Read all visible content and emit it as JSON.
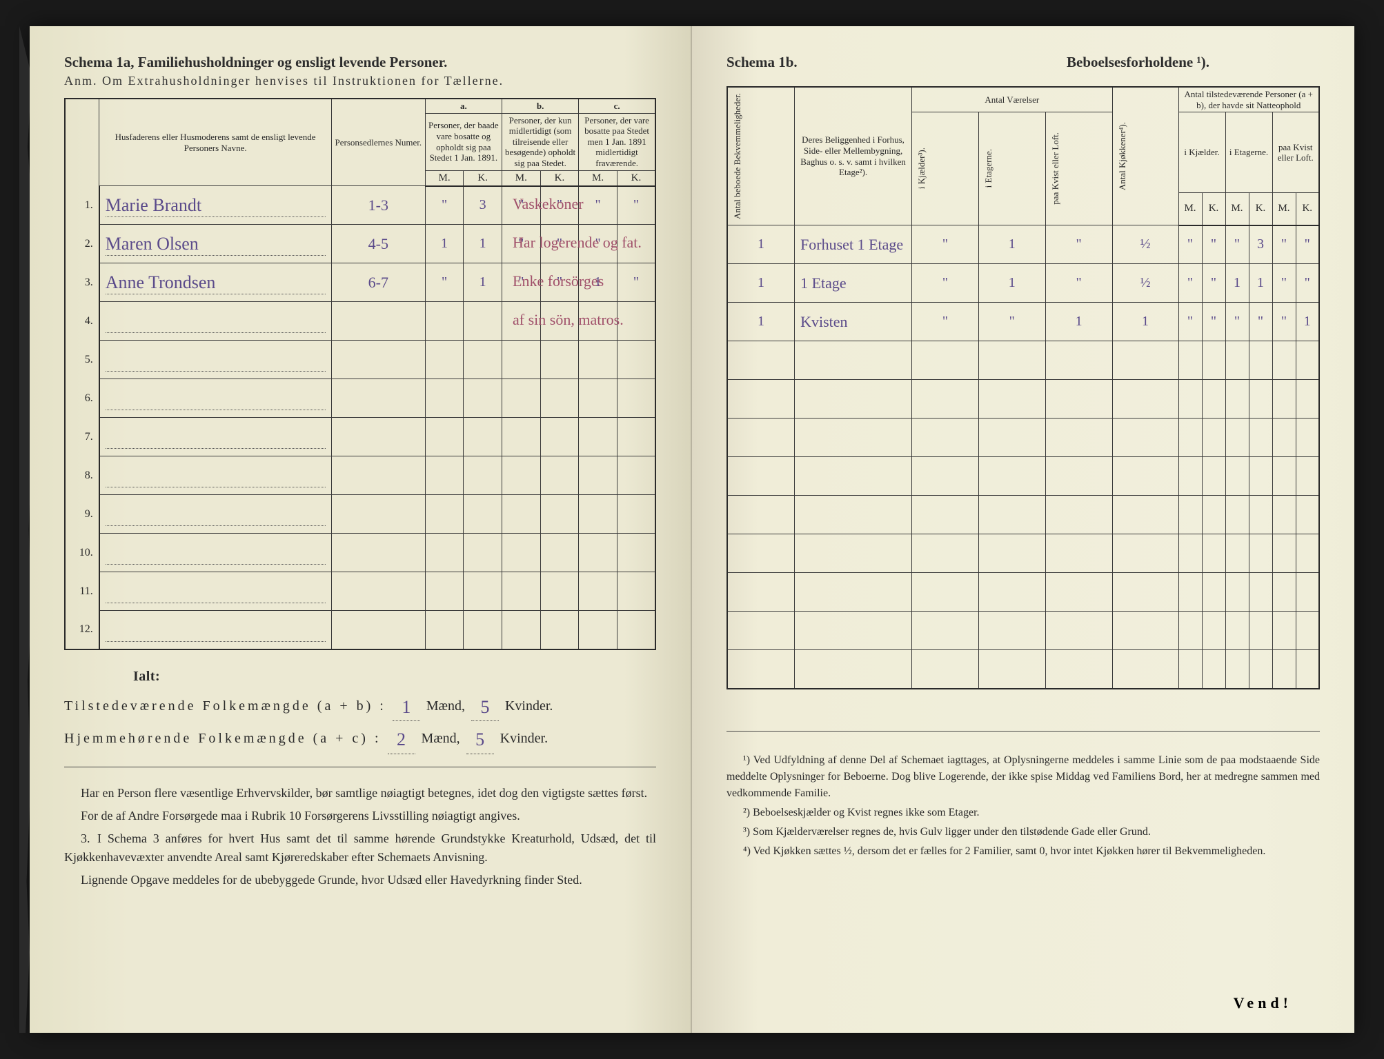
{
  "left": {
    "title": "Schema 1a, Familiehusholdninger og ensligt levende Personer.",
    "anm": "Anm. Om Extrahusholdninger henvises til Instruktionen for Tællerne.",
    "headers": {
      "col1": "Husfaderens eller Husmoderens samt de ensligt levende Personers Navne.",
      "col2": "Personsedlernes Numer.",
      "a": "a.",
      "a_sub": "Personer, der baade vare bosatte og opholdt sig paa Stedet 1 Jan. 1891.",
      "b": "b.",
      "b_sub": "Personer, der kun midlertidigt (som tilreisende eller besøgende) opholdt sig paa Stedet.",
      "c": "c.",
      "c_sub": "Personer, der vare bosatte paa Stedet men 1 Jan. 1891 midlertidigt fraværende.",
      "M": "M.",
      "K": "K."
    },
    "rows": [
      {
        "n": "1.",
        "name": "Marie Brandt",
        "num": "1-3",
        "aM": "\"",
        "aK": "3",
        "bM": "\"",
        "bK": "\"",
        "cM": "\"",
        "cK": "\"",
        "note": "Vaskekoner"
      },
      {
        "n": "2.",
        "name": "Maren Olsen",
        "num": "4-5",
        "aM": "1",
        "aK": "1",
        "bM": "\"",
        "bK": "\"",
        "cM": "\"",
        "cK": "",
        "note": "Har logerende og fat."
      },
      {
        "n": "3.",
        "name": "Anne Trondsen",
        "num": "6-7",
        "aM": "\"",
        "aK": "1",
        "bM": "\"",
        "bK": "\"",
        "cM": "1",
        "cK": "\"",
        "note": "Enke forsörges"
      },
      {
        "n": "4.",
        "name": "",
        "num": "",
        "aM": "",
        "aK": "",
        "bM": "",
        "bK": "",
        "cM": "",
        "cK": "",
        "note": "af sin sön, matros."
      },
      {
        "n": "5.",
        "name": "",
        "num": "",
        "aM": "",
        "aK": "",
        "bM": "",
        "bK": "",
        "cM": "",
        "cK": "",
        "note": ""
      },
      {
        "n": "6.",
        "name": "",
        "num": "",
        "aM": "",
        "aK": "",
        "bM": "",
        "bK": "",
        "cM": "",
        "cK": "",
        "note": ""
      },
      {
        "n": "7.",
        "name": "",
        "num": "",
        "aM": "",
        "aK": "",
        "bM": "",
        "bK": "",
        "cM": "",
        "cK": "",
        "note": ""
      },
      {
        "n": "8.",
        "name": "",
        "num": "",
        "aM": "",
        "aK": "",
        "bM": "",
        "bK": "",
        "cM": "",
        "cK": "",
        "note": ""
      },
      {
        "n": "9.",
        "name": "",
        "num": "",
        "aM": "",
        "aK": "",
        "bM": "",
        "bK": "",
        "cM": "",
        "cK": "",
        "note": ""
      },
      {
        "n": "10.",
        "name": "",
        "num": "",
        "aM": "",
        "aK": "",
        "bM": "",
        "bK": "",
        "cM": "",
        "cK": "",
        "note": ""
      },
      {
        "n": "11.",
        "name": "",
        "num": "",
        "aM": "",
        "aK": "",
        "bM": "",
        "bK": "",
        "cM": "",
        "cK": "",
        "note": ""
      },
      {
        "n": "12.",
        "name": "",
        "num": "",
        "aM": "",
        "aK": "",
        "bM": "",
        "bK": "",
        "cM": "",
        "cK": "",
        "note": ""
      }
    ],
    "totals": {
      "ialt": "Ialt:",
      "line1_a": "Tilstedeværende Folkemængde (a + b) :",
      "line1_m": "1",
      "line1_mlbl": "Mænd,",
      "line1_k": "5",
      "line1_klbl": "Kvinder.",
      "line2_a": "Hjemmehørende Folkemængde (a + c) :",
      "line2_m": "2",
      "line2_k": "5"
    },
    "foot": {
      "p1": "Har en Person flere væsentlige Erhvervskilder, bør samtlige nøiagtigt betegnes, idet dog den vigtigste sættes først.",
      "p2": "For de af Andre Forsørgede maa i Rubrik 10 Forsørgerens Livsstilling nøiagtigt angives.",
      "p3label": "3.",
      "p3": "I Schema 3 anføres for hvert Hus samt det til samme hørende Grundstykke Kreaturhold, Udsæd, det til Kjøkkenhavevæxter anvendte Areal samt Kjøreredskaber efter Schemaets Anvisning.",
      "p4": "Lignende Opgave meddeles for de ubebyggede Grunde, hvor Udsæd eller Havedyrkning finder Sted."
    }
  },
  "right": {
    "title_a": "Schema 1b.",
    "title_b": "Beboelsesforholdene ¹).",
    "headers": {
      "v1": "Antal beboede Bekvemmeligheder.",
      "col2": "Deres Beliggenhed i Forhus, Side- eller Mellembygning, Baghus o. s. v. samt i hvilken Etage²).",
      "vaerelser": "Antal Værelser",
      "v_k": "i Kjælder³).",
      "v_e": "i Etagerne.",
      "v_kl": "paa Kvist eller Loft.",
      "v_kj": "Antal Kjøkkener⁴).",
      "persons": "Antal tilstedeværende Personer (a + b), der havde sit Natteophold",
      "p_k": "i Kjælder.",
      "p_e": "i Etagerne.",
      "p_kl": "paa Kvist eller Loft.",
      "M": "M.",
      "K": "K."
    },
    "rows": [
      {
        "ab": "1",
        "loc": "Forhuset 1 Etage",
        "vk": "\"",
        "ve": "1",
        "vkl": "\"",
        "kj": "½",
        "pkM": "\"",
        "pkK": "\"",
        "peM": "\"",
        "peK": "3",
        "plM": "\"",
        "plK": "\""
      },
      {
        "ab": "1",
        "loc": "1 Etage",
        "vk": "\"",
        "ve": "1",
        "vkl": "\"",
        "kj": "½",
        "pkM": "\"",
        "pkK": "\"",
        "peM": "1",
        "peK": "1",
        "plM": "\"",
        "plK": "\""
      },
      {
        "ab": "1",
        "loc": "Kvisten",
        "vk": "\"",
        "ve": "\"",
        "vkl": "1",
        "kj": "1",
        "pkM": "\"",
        "pkK": "\"",
        "peM": "\"",
        "peK": "\"",
        "plM": "\"",
        "plK": "1"
      },
      {
        "ab": "",
        "loc": "",
        "vk": "",
        "ve": "",
        "vkl": "",
        "kj": "",
        "pkM": "",
        "pkK": "",
        "peM": "",
        "peK": "",
        "plM": "",
        "plK": ""
      },
      {
        "ab": "",
        "loc": "",
        "vk": "",
        "ve": "",
        "vkl": "",
        "kj": "",
        "pkM": "",
        "pkK": "",
        "peM": "",
        "peK": "",
        "plM": "",
        "plK": ""
      },
      {
        "ab": "",
        "loc": "",
        "vk": "",
        "ve": "",
        "vkl": "",
        "kj": "",
        "pkM": "",
        "pkK": "",
        "peM": "",
        "peK": "",
        "plM": "",
        "plK": ""
      },
      {
        "ab": "",
        "loc": "",
        "vk": "",
        "ve": "",
        "vkl": "",
        "kj": "",
        "pkM": "",
        "pkK": "",
        "peM": "",
        "peK": "",
        "plM": "",
        "plK": ""
      },
      {
        "ab": "",
        "loc": "",
        "vk": "",
        "ve": "",
        "vkl": "",
        "kj": "",
        "pkM": "",
        "pkK": "",
        "peM": "",
        "peK": "",
        "plM": "",
        "plK": ""
      },
      {
        "ab": "",
        "loc": "",
        "vk": "",
        "ve": "",
        "vkl": "",
        "kj": "",
        "pkM": "",
        "pkK": "",
        "peM": "",
        "peK": "",
        "plM": "",
        "plK": ""
      },
      {
        "ab": "",
        "loc": "",
        "vk": "",
        "ve": "",
        "vkl": "",
        "kj": "",
        "pkM": "",
        "pkK": "",
        "peM": "",
        "peK": "",
        "plM": "",
        "plK": ""
      },
      {
        "ab": "",
        "loc": "",
        "vk": "",
        "ve": "",
        "vkl": "",
        "kj": "",
        "pkM": "",
        "pkK": "",
        "peM": "",
        "peK": "",
        "plM": "",
        "plK": ""
      },
      {
        "ab": "",
        "loc": "",
        "vk": "",
        "ve": "",
        "vkl": "",
        "kj": "",
        "pkM": "",
        "pkK": "",
        "peM": "",
        "peK": "",
        "plM": "",
        "plK": ""
      }
    ],
    "footnotes": {
      "f1": "¹) Ved Udfyldning af denne Del af Schemaet iagttages, at Oplysningerne meddeles i samme Linie som de paa modstaaende Side meddelte Oplysninger for Beboerne. Dog blive Logerende, der ikke spise Middag ved Familiens Bord, her at medregne sammen med vedkommende Familie.",
      "f2": "²) Beboelseskjælder og Kvist regnes ikke som Etager.",
      "f3": "³) Som Kjælderværelser regnes de, hvis Gulv ligger under den tilstødende Gade eller Grund.",
      "f4": "⁴) Ved Kjøkken sættes ½, dersom det er fælles for 2 Familier, samt 0, hvor intet Kjøkken hører til Bekvemmeligheden."
    },
    "vend": "Vend!"
  }
}
